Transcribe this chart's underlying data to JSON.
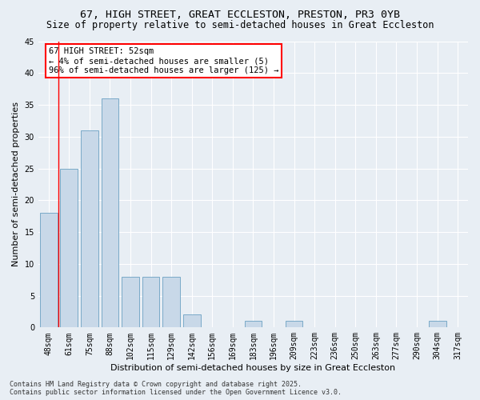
{
  "title": "67, HIGH STREET, GREAT ECCLESTON, PRESTON, PR3 0YB",
  "subtitle": "Size of property relative to semi-detached houses in Great Eccleston",
  "xlabel": "Distribution of semi-detached houses by size in Great Eccleston",
  "ylabel": "Number of semi-detached properties",
  "bar_labels": [
    "48sqm",
    "61sqm",
    "75sqm",
    "88sqm",
    "102sqm",
    "115sqm",
    "129sqm",
    "142sqm",
    "156sqm",
    "169sqm",
    "183sqm",
    "196sqm",
    "209sqm",
    "223sqm",
    "236sqm",
    "250sqm",
    "263sqm",
    "277sqm",
    "290sqm",
    "304sqm",
    "317sqm"
  ],
  "bar_values": [
    18,
    25,
    31,
    36,
    8,
    8,
    8,
    2,
    0,
    0,
    1,
    0,
    1,
    0,
    0,
    0,
    0,
    0,
    0,
    1,
    0
  ],
  "bar_color": "#c8d8e8",
  "bar_edge_color": "#7aaac8",
  "annotation_text": "67 HIGH STREET: 52sqm\n← 4% of semi-detached houses are smaller (5)\n96% of semi-detached houses are larger (125) →",
  "annotation_box_color": "white",
  "annotation_box_edge_color": "red",
  "ylim": [
    0,
    45
  ],
  "yticks": [
    0,
    5,
    10,
    15,
    20,
    25,
    30,
    35,
    40,
    45
  ],
  "background_color": "#e8eef4",
  "plot_bg_color": "#e8eef4",
  "footer": "Contains HM Land Registry data © Crown copyright and database right 2025.\nContains public sector information licensed under the Open Government Licence v3.0.",
  "title_fontsize": 9.5,
  "subtitle_fontsize": 8.5,
  "xlabel_fontsize": 8,
  "ylabel_fontsize": 8,
  "tick_fontsize": 7,
  "footer_fontsize": 6,
  "annotation_fontsize": 7.5,
  "red_line_x": 0.5
}
